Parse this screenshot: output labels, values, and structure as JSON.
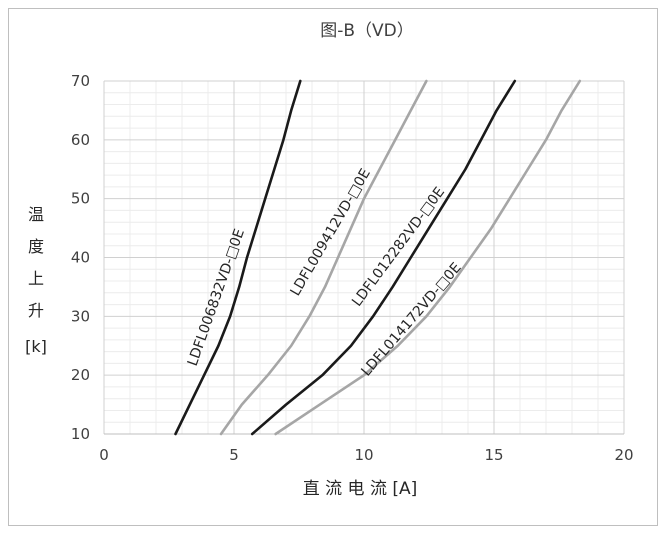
{
  "chart_data": {
    "type": "line",
    "title": "图-B（VD）",
    "xlabel": "直 流 电 流 [A]",
    "ylabel_chars": [
      "温",
      "度",
      "上",
      "升",
      "[k]"
    ],
    "xlim": [
      0,
      20
    ],
    "ylim": [
      10,
      70
    ],
    "x_ticks": [
      "0",
      "5",
      "10",
      "15",
      "20"
    ],
    "y_ticks": [
      "10",
      "20",
      "30",
      "40",
      "50",
      "60",
      "70"
    ],
    "minor_grid": true,
    "grid": true,
    "series": [
      {
        "name": "LDFL006832VD-□0E",
        "color": "#1a1a1a",
        "points": [
          [
            2.75,
            10
          ],
          [
            3.3,
            15
          ],
          [
            3.85,
            20
          ],
          [
            4.4,
            25
          ],
          [
            4.85,
            30
          ],
          [
            5.2,
            35
          ],
          [
            5.5,
            40
          ],
          [
            5.85,
            45
          ],
          [
            6.2,
            50
          ],
          [
            6.55,
            55
          ],
          [
            6.9,
            60
          ],
          [
            7.2,
            65
          ],
          [
            7.55,
            70
          ]
        ]
      },
      {
        "name": "LDFL009412VD-□0E",
        "color": "#a6a6a6",
        "points": [
          [
            4.5,
            10
          ],
          [
            5.3,
            15
          ],
          [
            6.3,
            20
          ],
          [
            7.2,
            25
          ],
          [
            7.9,
            30
          ],
          [
            8.5,
            35
          ],
          [
            9.0,
            40
          ],
          [
            9.5,
            45
          ],
          [
            10.0,
            50
          ],
          [
            10.6,
            55
          ],
          [
            11.2,
            60
          ],
          [
            11.8,
            65
          ],
          [
            12.4,
            70
          ]
        ]
      },
      {
        "name": "LDFL012282VD-□0E",
        "color": "#1a1a1a",
        "points": [
          [
            5.7,
            10
          ],
          [
            7.0,
            15
          ],
          [
            8.4,
            20
          ],
          [
            9.5,
            25
          ],
          [
            10.35,
            30
          ],
          [
            11.1,
            35
          ],
          [
            11.8,
            40
          ],
          [
            12.5,
            45
          ],
          [
            13.2,
            50
          ],
          [
            13.9,
            55
          ],
          [
            14.5,
            60
          ],
          [
            15.1,
            65
          ],
          [
            15.8,
            70
          ]
        ]
      },
      {
        "name": "LDFL014172VD-□0E",
        "color": "#a6a6a6",
        "points": [
          [
            6.6,
            10
          ],
          [
            8.3,
            15
          ],
          [
            10.0,
            20
          ],
          [
            11.3,
            25
          ],
          [
            12.4,
            30
          ],
          [
            13.3,
            35
          ],
          [
            14.1,
            40
          ],
          [
            14.9,
            45
          ],
          [
            15.6,
            50
          ],
          [
            16.3,
            55
          ],
          [
            17.0,
            60
          ],
          [
            17.6,
            65
          ],
          [
            18.3,
            70
          ]
        ]
      }
    ]
  }
}
